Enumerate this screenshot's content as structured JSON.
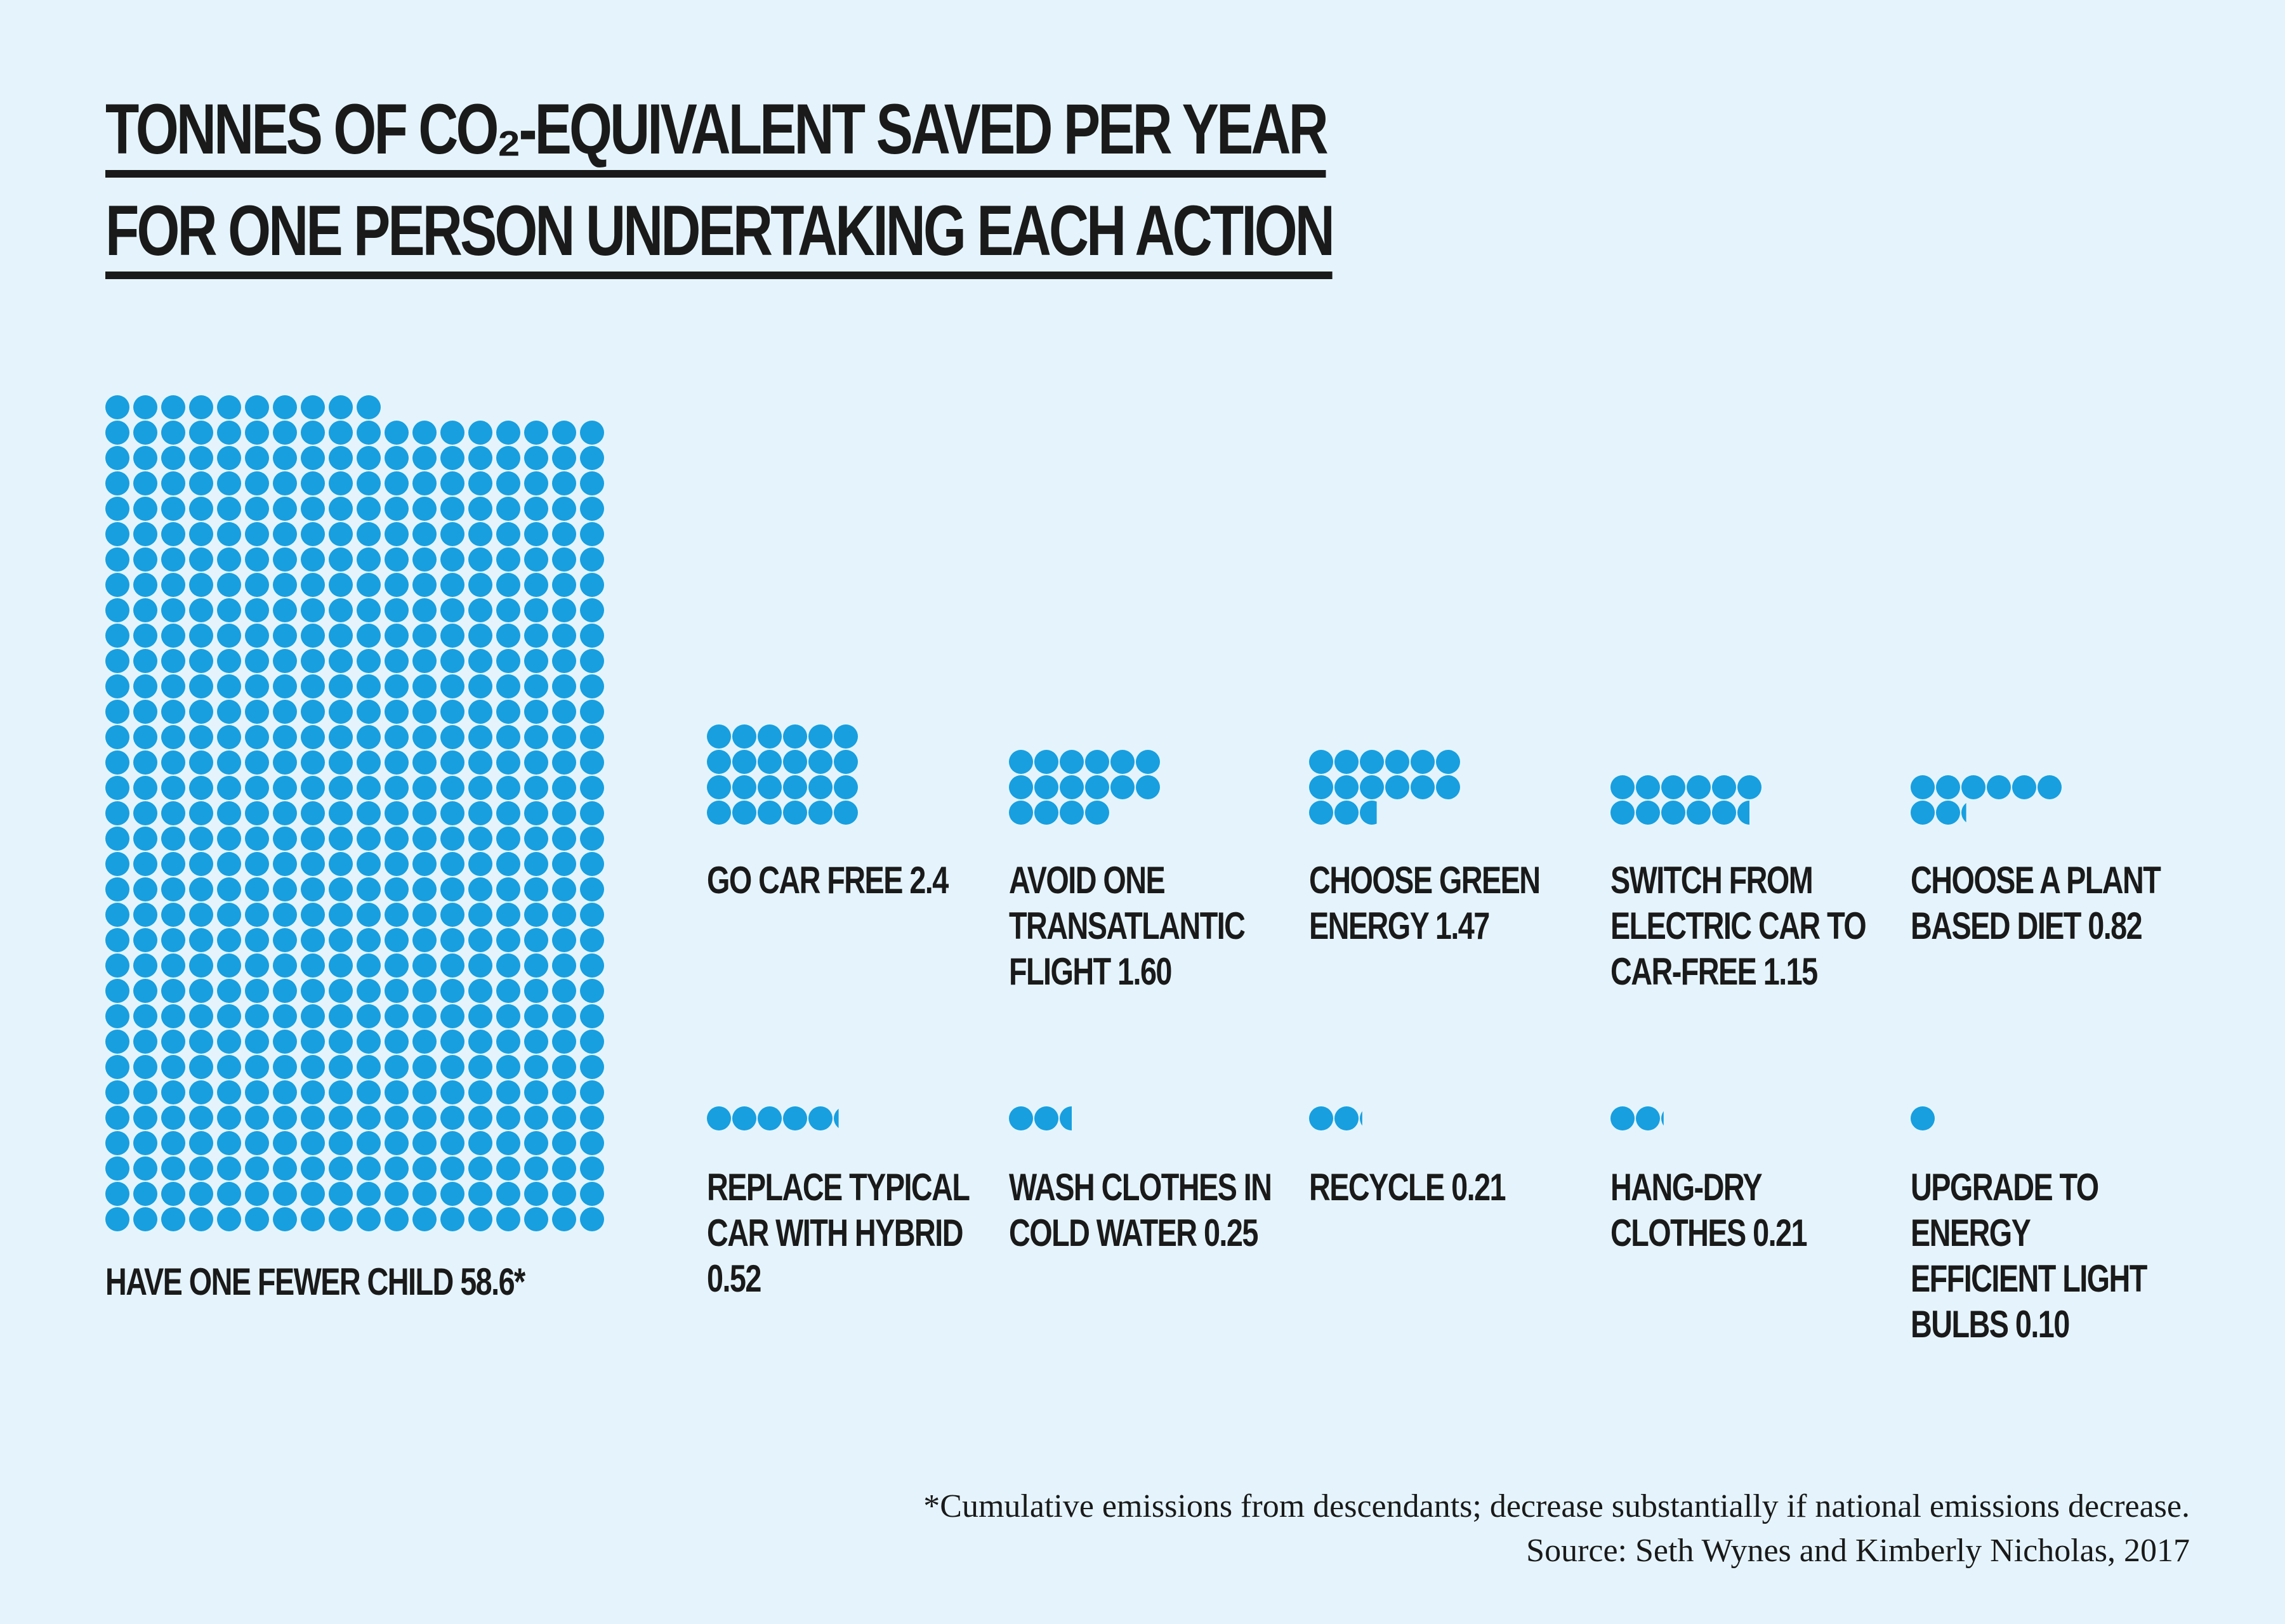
{
  "chart_data": {
    "type": "dots",
    "title": [
      "TONNES OF CO₂-EQUIVALENT SAVED PER YEAR",
      "FOR ONE PERSON UNDERTAKING EACH ACTION"
    ],
    "categories": [
      "HAVE ONE FEWER CHILD",
      "GO CAR FREE",
      "AVOID ONE TRANSATLANTIC FLIGHT",
      "CHOOSE GREEN ENERGY",
      "SWITCH FROM ELECTRIC CAR TO CAR-FREE",
      "CHOOSE A PLANT BASED DIET",
      "REPLACE TYPICAL CAR WITH HYBRID",
      "WASH CLOTHES IN COLD WATER",
      "RECYCLE",
      "HANG-DRY CLOTHES",
      "UPGRADE TO ENERGY EFFICIENT LIGHT BULBS"
    ],
    "values": [
      58.6,
      2.4,
      1.6,
      1.47,
      1.15,
      0.82,
      0.52,
      0.25,
      0.21,
      0.21,
      0.1
    ],
    "value_labels": [
      "58.6*",
      "2.4",
      "1.60",
      "1.47",
      "1.15",
      "0.82",
      "0.52",
      "0.25",
      "0.21",
      "0.21",
      "0.10"
    ],
    "color": "#179fe0",
    "annotations": [
      "*Cumulative emissions from descendants; decrease substantially if national emissions decrease.",
      "Source: Seth Wynes and Kimberly Nicholas, 2017"
    ]
  }
}
